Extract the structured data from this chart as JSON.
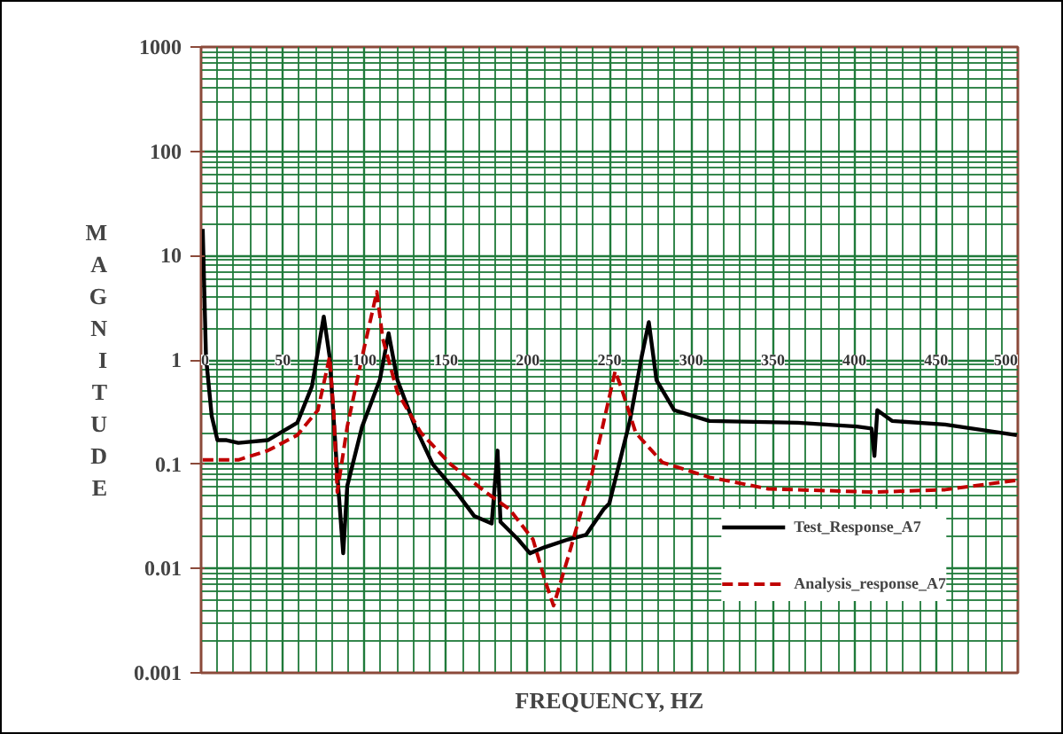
{
  "chart_data": {
    "type": "line",
    "xlabel": "FREQUENCY, HZ",
    "ylabel": "MAGNITUDE",
    "xlim": [
      0,
      500
    ],
    "xticks": [
      0,
      50,
      100,
      150,
      200,
      250,
      300,
      350,
      400,
      450,
      500
    ],
    "ylim": [
      0.001,
      1000
    ],
    "yticks": [
      0.001,
      0.01,
      0.1,
      1,
      10,
      100,
      1000
    ],
    "log": "y",
    "grid": true,
    "legend": "bottom right",
    "marker": "none",
    "series": [
      {
        "name": "Test_Response_A7",
        "color": "#000000",
        "line_style": "solid",
        "x": [
          1,
          3,
          6.5,
          10,
          15.6,
          22.8,
          40.8,
          58.9,
          67.9,
          75.1,
          78.7,
          83.4,
          87,
          89.5,
          98.6,
          109.4,
          114.8,
          120.2,
          131,
          141.8,
          156.3,
          167.1,
          177.9,
          181.5,
          183.3,
          194.1,
          201.3,
          210.3,
          224.7,
          235.6,
          246.4,
          249.9,
          262.5,
          269.7,
          274.1,
          278.8,
          289.6,
          311.2,
          365.3,
          401.4,
          410.4,
          412.2,
          414,
          423,
          455.4,
          499.4
        ],
        "values": [
          18,
          1.07,
          0.29,
          0.17,
          0.17,
          0.16,
          0.17,
          0.25,
          0.56,
          2.6,
          1.07,
          0.08,
          0.014,
          0.062,
          0.23,
          0.64,
          1.8,
          0.64,
          0.23,
          0.1,
          0.054,
          0.032,
          0.027,
          0.135,
          0.028,
          0.019,
          0.014,
          0.016,
          0.019,
          0.021,
          0.037,
          0.042,
          0.26,
          1.07,
          2.3,
          0.64,
          0.33,
          0.26,
          0.25,
          0.23,
          0.22,
          0.12,
          0.33,
          0.26,
          0.24,
          0.19
        ]
      },
      {
        "name": "Analysis_response_A7",
        "color": "#c00000",
        "line_style": "dashed",
        "x": [
          1,
          22.8,
          40.8,
          58.9,
          71.5,
          78.7,
          81.3,
          83.4,
          89.5,
          98.6,
          107.6,
          111.2,
          120.2,
          134.6,
          152.7,
          174.3,
          188.8,
          203.2,
          210.4,
          215.8,
          224.8,
          239.2,
          253.5,
          257.1,
          266.1,
          282.4,
          311.2,
          347.3,
          412.2,
          455.5,
          498.8
        ],
        "values": [
          0.11,
          0.11,
          0.135,
          0.19,
          0.33,
          1.07,
          0.29,
          0.054,
          0.23,
          1.07,
          4.5,
          1.6,
          0.49,
          0.2,
          0.1,
          0.054,
          0.037,
          0.019,
          0.0078,
          0.0044,
          0.013,
          0.08,
          0.78,
          0.55,
          0.2,
          0.104,
          0.075,
          0.058,
          0.054,
          0.057,
          0.07
        ]
      }
    ]
  }
}
